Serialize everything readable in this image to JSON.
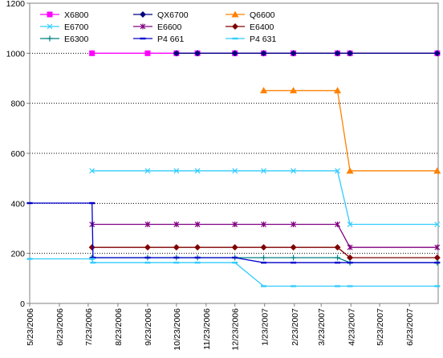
{
  "chart_data": {
    "type": "line",
    "title": "",
    "xlabel": "",
    "ylabel": "",
    "ylim": [
      0,
      1200
    ],
    "yticks": [
      0,
      200,
      400,
      600,
      800,
      1000,
      1200
    ],
    "xlim": [
      "2006-05-23",
      "2007-07-23"
    ],
    "xticks": [
      "5/23/2006",
      "6/23/2006",
      "7/23/2006",
      "8/23/2006",
      "9/23/2006",
      "10/23/2006",
      "11/23/2006",
      "12/23/2006",
      "1/23/2007",
      "2/23/2007",
      "3/23/2007",
      "4/23/2007",
      "5/23/2007",
      "6/23/2007"
    ],
    "grid": "horizontal dotted",
    "legend": "top",
    "series": [
      {
        "name": "X6800",
        "color": "#FF00FF",
        "marker": "square",
        "points": [
          [
            "2006-07-27",
            1000
          ],
          [
            "2006-09-23",
            1000
          ],
          [
            "2006-10-23",
            1000
          ],
          [
            "2006-11-14",
            1000
          ],
          [
            "2006-12-23",
            1000
          ],
          [
            "2007-01-22",
            1000
          ],
          [
            "2007-02-22",
            1000
          ],
          [
            "2007-04-09",
            1000
          ],
          [
            "2007-04-22",
            1000
          ],
          [
            "2007-07-22",
            1000
          ]
        ]
      },
      {
        "name": "QX6700",
        "color": "#000080",
        "marker": "diamond",
        "points": [
          [
            "2006-10-23",
            1000
          ],
          [
            "2006-11-14",
            1000
          ],
          [
            "2006-12-23",
            1000
          ],
          [
            "2007-01-22",
            1000
          ],
          [
            "2007-02-22",
            1000
          ],
          [
            "2007-04-09",
            1000
          ],
          [
            "2007-04-22",
            1000
          ],
          [
            "2007-07-22",
            1000
          ]
        ]
      },
      {
        "name": "Q6600",
        "color": "#FF8000",
        "marker": "triangle",
        "points": [
          [
            "2007-01-22",
            851
          ],
          [
            "2007-02-22",
            851
          ],
          [
            "2007-04-09",
            851
          ],
          [
            "2007-04-22",
            530
          ],
          [
            "2007-07-22",
            530
          ]
        ]
      },
      {
        "name": "E6700",
        "color": "#33CCFF",
        "marker": "x",
        "points": [
          [
            "2006-07-27",
            530
          ],
          [
            "2006-09-23",
            530
          ],
          [
            "2006-10-23",
            530
          ],
          [
            "2006-11-14",
            530
          ],
          [
            "2006-12-23",
            530
          ],
          [
            "2007-01-22",
            530
          ],
          [
            "2007-02-22",
            530
          ],
          [
            "2007-04-09",
            530
          ],
          [
            "2007-04-22",
            316
          ],
          [
            "2007-07-22",
            316
          ]
        ]
      },
      {
        "name": "E6600",
        "color": "#800080",
        "marker": "star",
        "points": [
          [
            "2006-07-27",
            316
          ],
          [
            "2006-09-23",
            316
          ],
          [
            "2006-10-23",
            316
          ],
          [
            "2006-11-14",
            316
          ],
          [
            "2006-12-23",
            316
          ],
          [
            "2007-01-22",
            316
          ],
          [
            "2007-02-22",
            316
          ],
          [
            "2007-04-09",
            316
          ],
          [
            "2007-04-22",
            224
          ],
          [
            "2007-07-22",
            224
          ]
        ]
      },
      {
        "name": "E6400",
        "color": "#800000",
        "marker": "diamond",
        "points": [
          [
            "2006-07-27",
            224
          ],
          [
            "2006-09-23",
            224
          ],
          [
            "2006-10-23",
            224
          ],
          [
            "2006-11-14",
            224
          ],
          [
            "2006-12-23",
            224
          ],
          [
            "2007-01-22",
            224
          ],
          [
            "2007-02-22",
            224
          ],
          [
            "2007-04-09",
            224
          ],
          [
            "2007-04-22",
            183
          ],
          [
            "2007-07-22",
            183
          ]
        ]
      },
      {
        "name": "E6300",
        "color": "#008080",
        "marker": "plus",
        "points": [
          [
            "2006-07-27",
            183
          ],
          [
            "2006-09-23",
            183
          ],
          [
            "2006-10-23",
            183
          ],
          [
            "2006-11-14",
            183
          ],
          [
            "2006-12-23",
            183
          ],
          [
            "2007-01-22",
            183
          ],
          [
            "2007-02-22",
            183
          ],
          [
            "2007-04-09",
            183
          ],
          [
            "2007-04-22",
            163
          ],
          [
            "2007-07-22",
            163
          ]
        ]
      },
      {
        "name": "P4 661",
        "color": "#0000CC",
        "marker": "dash",
        "points": [
          [
            "2006-05-23",
            401
          ],
          [
            "2006-07-27",
            401
          ],
          [
            "2006-07-28",
            183
          ],
          [
            "2006-09-23",
            183
          ],
          [
            "2006-10-23",
            183
          ],
          [
            "2006-11-14",
            183
          ],
          [
            "2006-12-23",
            183
          ],
          [
            "2007-01-22",
            163
          ],
          [
            "2007-02-22",
            163
          ],
          [
            "2007-04-09",
            163
          ],
          [
            "2007-04-22",
            163
          ],
          [
            "2007-07-22",
            163
          ]
        ]
      },
      {
        "name": "P4 631",
        "color": "#33CCFF",
        "marker": "dash",
        "points": [
          [
            "2006-05-23",
            178
          ],
          [
            "2006-07-27",
            178
          ],
          [
            "2006-07-28",
            163
          ],
          [
            "2006-09-23",
            163
          ],
          [
            "2006-10-23",
            163
          ],
          [
            "2006-11-14",
            163
          ],
          [
            "2006-12-23",
            163
          ],
          [
            "2007-01-22",
            69
          ],
          [
            "2007-02-22",
            69
          ],
          [
            "2007-04-09",
            69
          ],
          [
            "2007-04-22",
            69
          ],
          [
            "2007-07-22",
            69
          ]
        ]
      }
    ]
  }
}
